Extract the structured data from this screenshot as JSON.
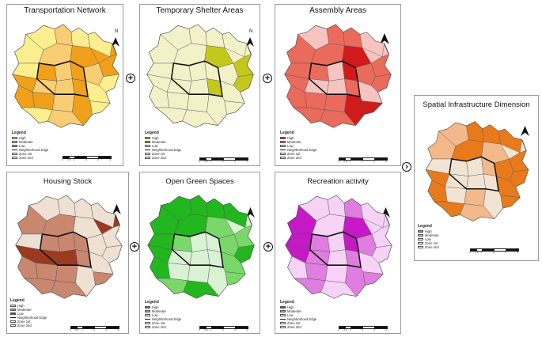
{
  "panels": {
    "transport": {
      "title": "Transportation Network",
      "legend": {
        "title": "Legend",
        "items": [
          "High",
          "Moderate",
          "Low",
          "Neighborhood Edge",
          "Zone 1st",
          "Zone 2nd"
        ]
      },
      "colors": {
        "high": "#fbee8e",
        "moderate": "#f8cd74",
        "low": "#f0a01a"
      },
      "north_label": "N",
      "scale": [
        "0",
        "0.5",
        "1",
        "2",
        "3",
        "4"
      ]
    },
    "shelter": {
      "title": "Temporary Shelter Areas",
      "legend": {
        "title": "Legend",
        "items": [
          "High",
          "Moderate",
          "Low",
          "Neighborhood Edge",
          "Zone 1st",
          "Zone 2nd"
        ]
      },
      "colors": {
        "high": "#c4c81c",
        "moderate": "#a4a41c",
        "low": "#f3f1c8"
      },
      "north_label": "N",
      "scale": [
        "0",
        "0.5",
        "1",
        "2",
        "3",
        "4"
      ]
    },
    "assembly": {
      "title": "Assembly Areas",
      "legend": {
        "title": "Legend",
        "items": [
          "High",
          "Moderate",
          "Low",
          "Neighborhood Edge",
          "Zone 1st",
          "Zone 2nd"
        ]
      },
      "colors": {
        "high": "#d11a1a",
        "moderate": "#ea6a5c",
        "low": "#f7c3c1"
      },
      "scale": [
        "0",
        "0.5",
        "1",
        "2",
        "3",
        "4"
      ]
    },
    "housing": {
      "title": "Housing Stock",
      "legend": {
        "title": "Legend",
        "items": [
          "High",
          "Moderate",
          "Low",
          "Neighborhood Edge",
          "Zone 1st",
          "Zone 2nd"
        ]
      },
      "colors": {
        "high": "#eee0d3",
        "moderate": "#c98770",
        "low": "#9b3a1f"
      },
      "scale": [
        "0",
        "0.5",
        "1",
        "2",
        "3",
        "4"
      ]
    },
    "green": {
      "title": "Open Green Spaces",
      "legend": {
        "title": "Legend",
        "items": [
          "High",
          "Moderate",
          "Low",
          "Neighborhood Edge",
          "Zone 1st",
          "Zone 2nd"
        ]
      },
      "colors": {
        "high": "#22b71f",
        "moderate": "#7ad86b",
        "low": "#d9f2d4"
      },
      "scale": [
        "0",
        "0.5",
        "1",
        "2",
        "3",
        "4"
      ]
    },
    "recreation": {
      "title": "Recreation activity",
      "legend": {
        "title": "Legend",
        "items": [
          "High",
          "Moderate",
          "Low",
          "Neighborhood Edge",
          "Zone 1st",
          "Zone 2nd"
        ]
      },
      "colors": {
        "high": "#c419c4",
        "moderate": "#e07de0",
        "low": "#f6d2f6"
      },
      "scale": [
        "0",
        "0.5",
        "1",
        "2",
        "3",
        "4"
      ]
    },
    "spatial": {
      "title": "Spatial Infrastructure Dimension",
      "legend": {
        "title": "Legend",
        "items": [
          "High",
          "Moderate",
          "Low",
          "Zone 1st",
          "Zone 2nd"
        ]
      },
      "colors": {
        "high": "#e97a1c",
        "moderate": "#f3b98a",
        "low": "#f2e4d3"
      },
      "scale": [
        "0",
        "0.5",
        "1",
        "2",
        "3",
        "4"
      ]
    }
  },
  "operators": {
    "plus": "+",
    "result": "›"
  },
  "icons": {
    "north": "north-arrow-icon",
    "plus": "plus-icon",
    "arrow": "chevron-right-icon"
  }
}
